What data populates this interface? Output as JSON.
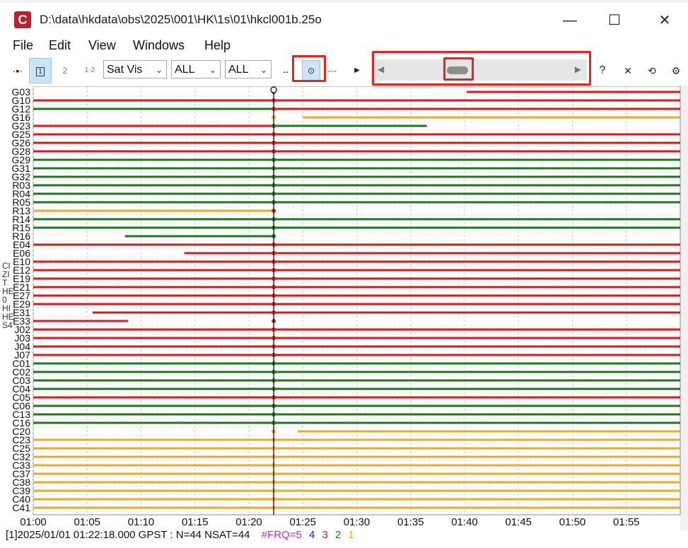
{
  "window": {
    "title": "D:\\data\\hkdata\\obs\\2025\\001\\HK\\1s\\01\\hkcl001b.25o",
    "app_icon_letter": "C",
    "minimize": "—",
    "maximize": "☐",
    "close": "✕"
  },
  "menu": [
    "File",
    "Edit",
    "View",
    "Windows",
    "Help"
  ],
  "toolbar": {
    "btn1": "1",
    "btn2": "2",
    "btn12": "1-2",
    "plot_type": "Sat Vis",
    "sys_filter": "ALL",
    "obs_filter": "ALL",
    "help": "?",
    "close": "✕",
    "reload": "⟲",
    "settings": "⚙"
  },
  "colors": {
    "red": "#e21818",
    "green": "#1c7a1c",
    "orange": "#f5a623",
    "grid": "#c8c8c8"
  },
  "plot": {
    "cursor_time": "01:22:18",
    "x_ticks": [
      "01:00",
      "01:05",
      "01:10",
      "01:15",
      "01:20",
      "01:25",
      "01:30",
      "01:35",
      "01:40",
      "01:45",
      "01:50",
      "01:55"
    ],
    "sats": [
      "G03",
      "G10",
      "G12",
      "G16",
      "G23",
      "G25",
      "G26",
      "G28",
      "G29",
      "G31",
      "G32",
      "R03",
      "R04",
      "R05",
      "R13",
      "R14",
      "R15",
      "R16",
      "E04",
      "E06",
      "E10",
      "E12",
      "E19",
      "E21",
      "E27",
      "E29",
      "E31",
      "E33",
      "J02",
      "J03",
      "J04",
      "J07",
      "C01",
      "C02",
      "C03",
      "C04",
      "C05",
      "C06",
      "C13",
      "C16",
      "C20",
      "C23",
      "C25",
      "C32",
      "C33",
      "C37",
      "C38",
      "C39",
      "C40",
      "C41"
    ],
    "side_labels": [
      "Cl",
      "ZI",
      "T",
      "HE",
      "0",
      "HI",
      "HE",
      "S4"
    ]
  },
  "status": {
    "main": "[1]2025/01/01 01:22:18.000 GPST : N=44 NSAT=44",
    "frq": "#FRQ=5",
    "f4": "4",
    "f3": "3",
    "f2": "2",
    "f1": "1"
  }
}
